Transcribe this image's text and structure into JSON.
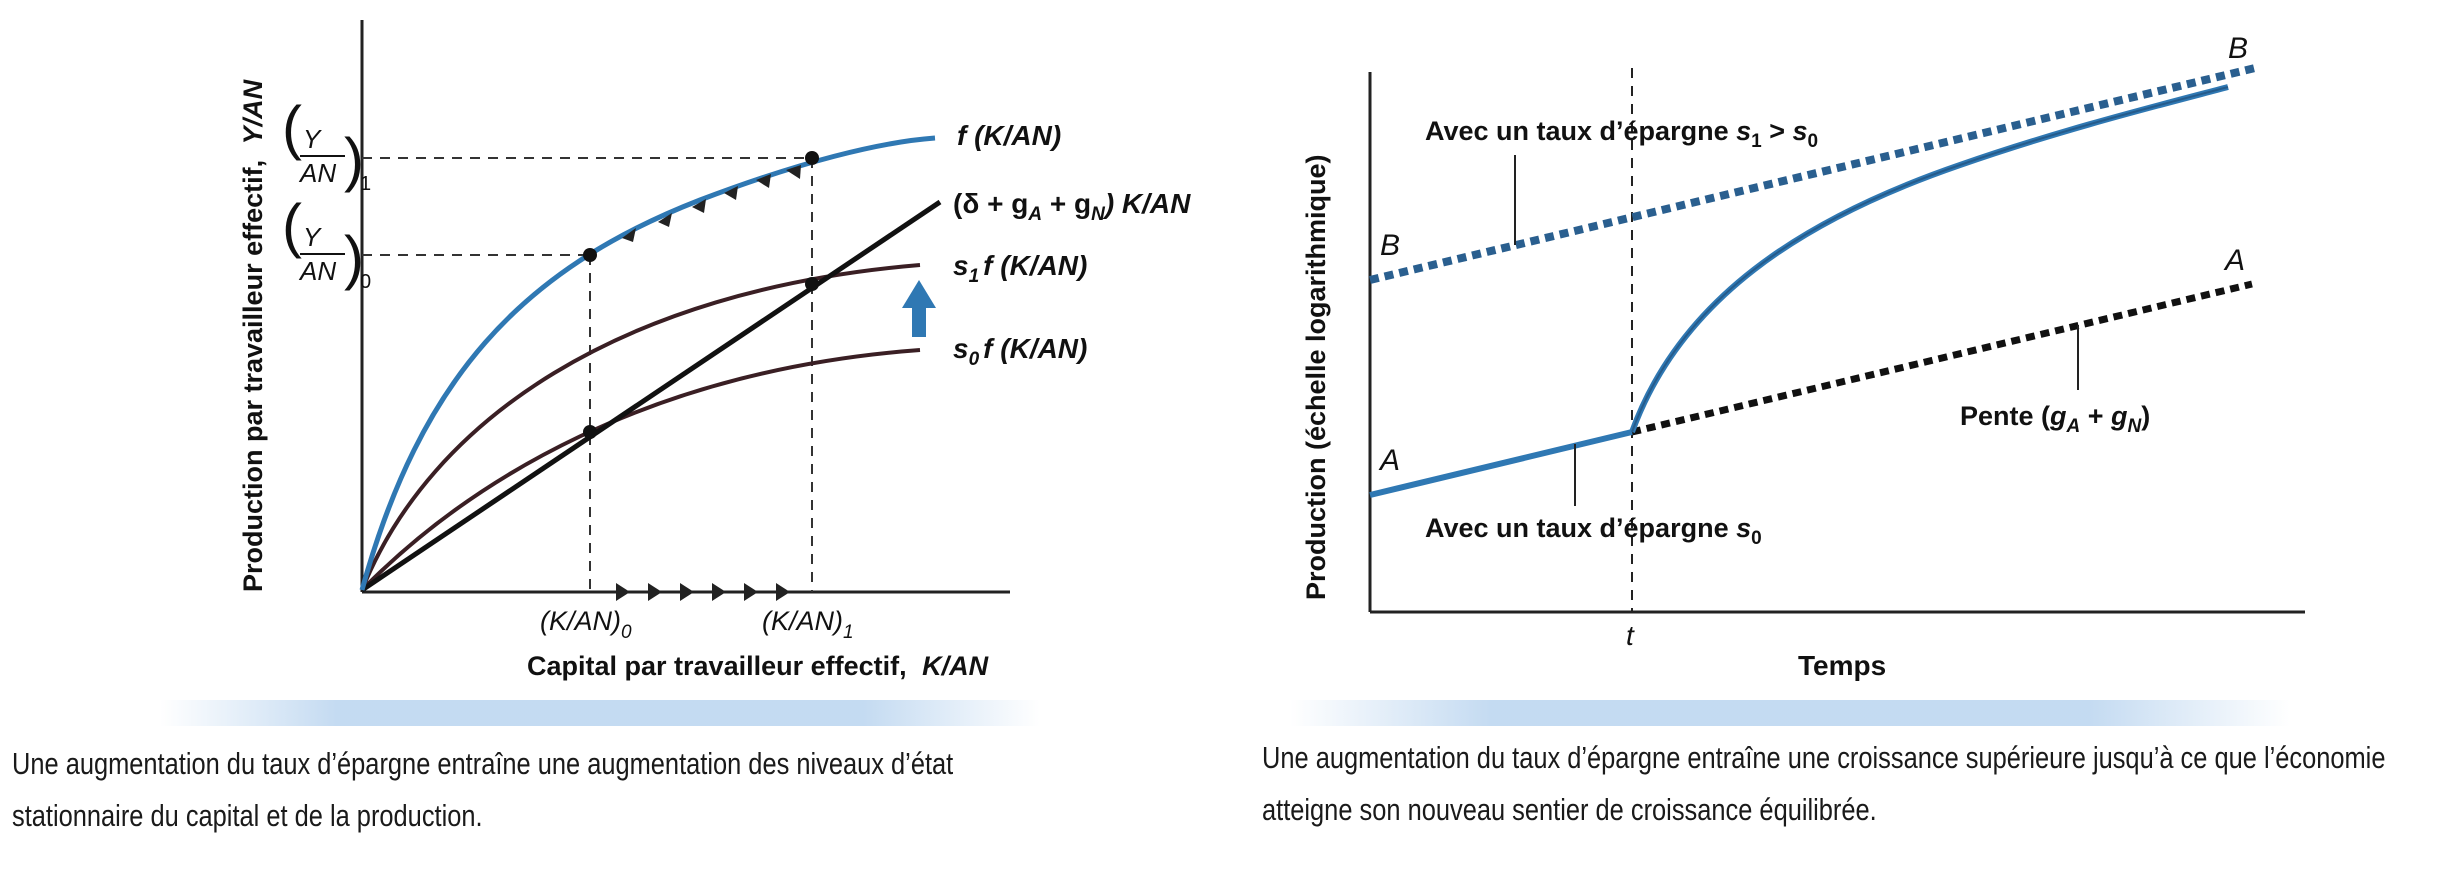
{
  "left_figure": {
    "y_axis_label": "Production par travailleur effectif,",
    "y_axis_label_var": "Y/AN",
    "x_axis_label": "Capital par travailleur effectif,",
    "x_axis_label_var": "K/AN",
    "y1_num": "Y",
    "y1_den": "AN",
    "y1_sub": "1",
    "y0_num": "Y",
    "y0_den": "AN",
    "y0_sub": "0",
    "x0_label": "(K/AN)",
    "x0_sub": "0",
    "x1_label": "(K/AN)",
    "x1_sub": "1",
    "curve_f": "f (K/AN)",
    "line_a": "(δ + g",
    "line_b": "A",
    "line_c": " + g",
    "line_d": "N",
    "line_e": ") K/AN",
    "s1_a": "s",
    "s1_sub": "1",
    "s1_b": "f (K/AN)",
    "s0_a": "s",
    "s0_sub": "0",
    "s0_b": "f (K/AN)"
  },
  "right_figure": {
    "y_axis_label": "Production (échelle logarithmique)",
    "x_axis_label": "Temps",
    "t_label": "t",
    "label_B_left": "B",
    "label_B_right": "B",
    "label_A_left": "A",
    "label_A_right": "A",
    "annot_s1_text": "Avec un taux d’épargne ",
    "annot_s1_a": "s",
    "annot_s1_sub1": "1",
    "annot_s1_gt": " > ",
    "annot_s1_b": "s",
    "annot_s1_sub0": "0",
    "annot_s0_text": "Avec un taux d’épargne ",
    "annot_s0_a": "s",
    "annot_s0_sub": "0",
    "pente_a": "Pente (",
    "pente_g1": "g",
    "pente_A": "A",
    "pente_plus": " + ",
    "pente_g2": "g",
    "pente_N": "N",
    "pente_close": ")"
  },
  "captions": {
    "left": "Une augmentation du taux d’épargne entraîne une augmentation des niveaux d’état stationnaire du capital et de la production.",
    "right": "Une augmentation du taux d’épargne entraîne une croissance supérieure jusqu’à ce que l’économie atteigne son nouveau sentier de croissance équilibrée."
  },
  "colors": {
    "blue_curve": "#2f78b3",
    "dark_curve": "#3a1f24",
    "axis": "#222222"
  }
}
